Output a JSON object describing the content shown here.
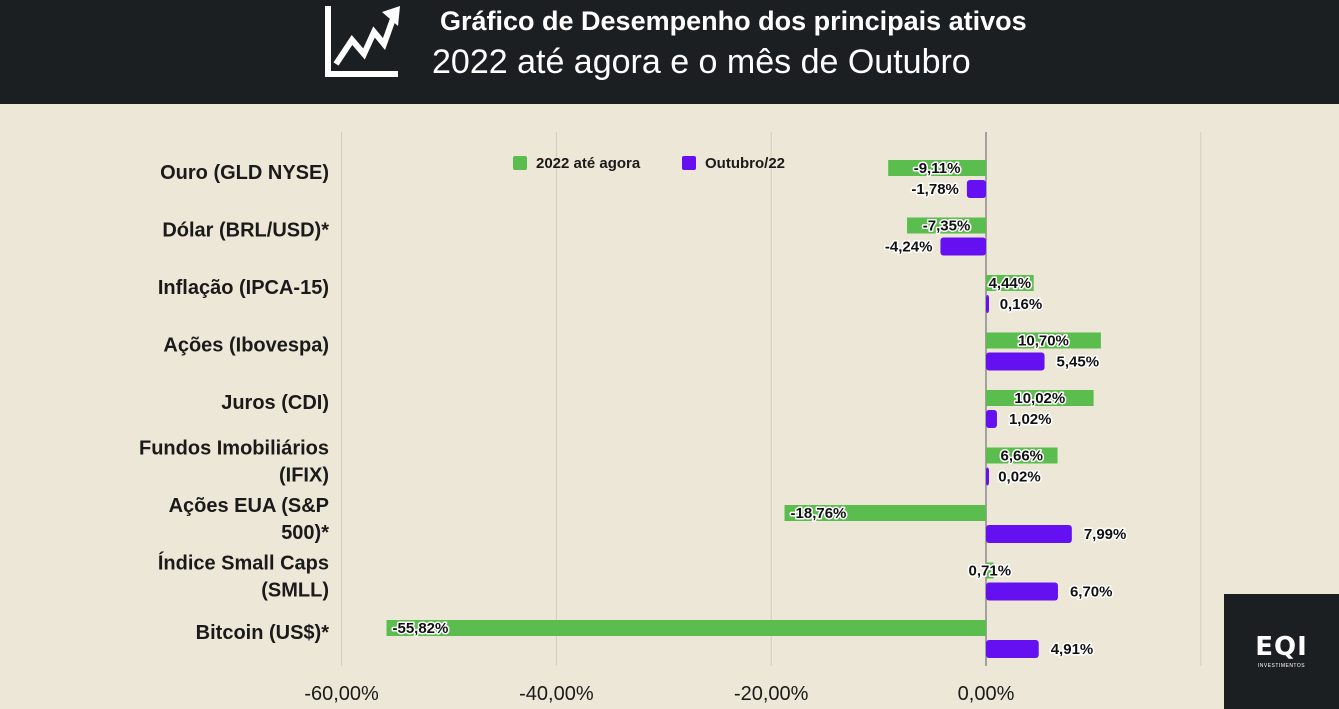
{
  "header": {
    "title": "Gráfico de Desempenho dos principais ativos",
    "subtitle": "2022 até agora e o mês de Outubro",
    "icon": "trending-up-chart-icon"
  },
  "logo": {
    "text": "EQI",
    "subtext": "INVESTIMENTOS"
  },
  "colors": {
    "header_bg": "#1c1f21",
    "background": "#ece7d6",
    "series_2022": "#5cbd4f",
    "series_oct": "#6410f0"
  },
  "chart_data": {
    "type": "bar",
    "orientation": "horizontal",
    "title": "",
    "categories": [
      [
        "Ouro (GLD NYSE)"
      ],
      [
        "Dólar (BRL/USD)*"
      ],
      [
        "Inflação (IPCA-15)"
      ],
      [
        "Ações (Ibovespa)"
      ],
      [
        "Juros (CDI)"
      ],
      [
        "Fundos Imobiliários",
        "(IFIX)"
      ],
      [
        "Ações EUA (S&P",
        "500)*"
      ],
      [
        "Índice Small Caps",
        "(SMLL)"
      ],
      [
        "Bitcoin (US$)*"
      ]
    ],
    "series": [
      {
        "name": "2022 até agora",
        "color": "#5cbd4f",
        "values": [
          -9.11,
          -7.35,
          4.44,
          10.7,
          10.02,
          6.66,
          -18.76,
          0.71,
          -55.82
        ],
        "labels": [
          "-9,11%",
          "-7,35%",
          "4,44%",
          "10,70%",
          "10,02%",
          "6,66%",
          "-18,76%",
          "0,71%",
          "-55,82%"
        ]
      },
      {
        "name": "Outubro/22",
        "color": "#6410f0",
        "values": [
          -1.78,
          -4.24,
          0.16,
          5.45,
          1.02,
          0.02,
          7.99,
          6.7,
          4.91
        ],
        "labels": [
          "-1,78%",
          "-4,24%",
          "0,16%",
          "5,45%",
          "1,02%",
          "0,02%",
          "7,99%",
          "6,70%",
          "4,91%"
        ]
      }
    ],
    "xlim": [
      -60,
      20
    ],
    "xticks": [
      -60,
      -40,
      -20,
      0
    ],
    "xtick_labels": [
      "-60,00%",
      "-40,00%",
      "-20,00%",
      "0,00%"
    ],
    "grid": true,
    "legend_position": "top"
  }
}
